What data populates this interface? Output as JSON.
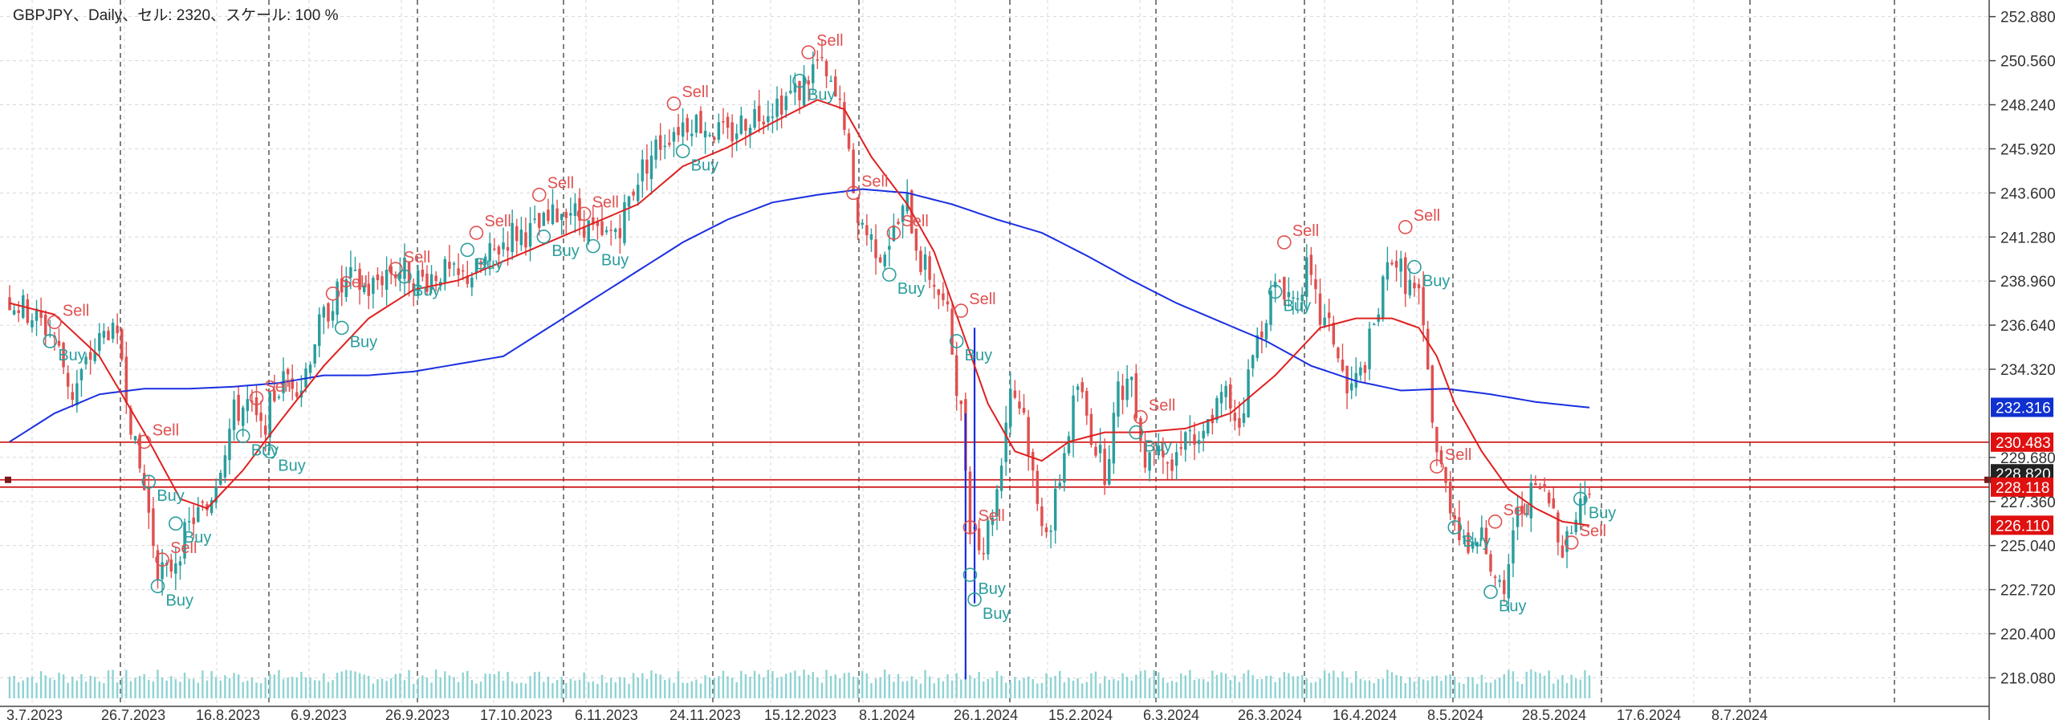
{
  "window": {
    "title": "GBPJPY、Daily、セル: 2320、スケール: 100 %"
  },
  "colors": {
    "bull": "#2a9d9d",
    "bear": "#e05050",
    "ma_fast": "#e02020",
    "ma_slow": "#1a2fe0",
    "hline": "#d02020",
    "grid": "#d8d8d8",
    "vline": "#555555",
    "tag_blue": "#1030d0",
    "tag_red": "#e01010",
    "tag_black": "#222222"
  },
  "chart_data": {
    "type": "candlestick",
    "symbol": "GBPJPY",
    "timeframe": "Daily",
    "ylim": [
      217.0,
      253.5
    ],
    "y_ticks": [
      "252.880",
      "250.560",
      "248.240",
      "245.920",
      "243.600",
      "241.280",
      "238.960",
      "236.640",
      "234.320",
      "229.680",
      "227.360",
      "225.040",
      "222.720",
      "220.400",
      "218.080"
    ],
    "x_tick_labels": [
      "3.7.2023",
      "26.7.2023",
      "16.8.2023",
      "6.9.2023",
      "26.9.2023",
      "17.10.2023",
      "6.11.2023",
      "24.11.2023",
      "15.12.2023",
      "8.1.2024",
      "26.1.2024",
      "15.2.2024",
      "6.3.2024",
      "26.3.2024",
      "16.4.2024",
      "8.5.2024",
      "28.5.2024",
      "17.6.2024",
      "8.7.2024"
    ],
    "price_tags": [
      {
        "value": "232.316",
        "color": "blue"
      },
      {
        "value": "230.483",
        "color": "red"
      },
      {
        "value": "228.820",
        "color": "black"
      },
      {
        "value": "228.118",
        "color": "red"
      },
      {
        "value": "226.110",
        "color": "red"
      }
    ],
    "horizontal_lines": [
      230.483,
      228.5,
      228.118
    ],
    "trend": [
      [
        0,
        238.0
      ],
      [
        6,
        237.0
      ],
      [
        10,
        236.0
      ],
      [
        14,
        233.0
      ],
      [
        18,
        235.0
      ],
      [
        22,
        236.5
      ],
      [
        25,
        235.0
      ],
      [
        28,
        230.0
      ],
      [
        30,
        228.0
      ],
      [
        33,
        224.0
      ],
      [
        35,
        223.5
      ],
      [
        38,
        225.0
      ],
      [
        41,
        226.5
      ],
      [
        44,
        227.0
      ],
      [
        47,
        229.5
      ],
      [
        50,
        232.0
      ],
      [
        53,
        232.5
      ],
      [
        56,
        231.0
      ],
      [
        59,
        233.0
      ],
      [
        62,
        234.0
      ],
      [
        65,
        233.5
      ],
      [
        68,
        236.0
      ],
      [
        72,
        238.0
      ],
      [
        76,
        239.0
      ],
      [
        80,
        238.5
      ],
      [
        84,
        239.5
      ],
      [
        88,
        239.5
      ],
      [
        92,
        239.0
      ],
      [
        96,
        239.5
      ],
      [
        100,
        239.0
      ],
      [
        104,
        239.5
      ],
      [
        108,
        240.5
      ],
      [
        112,
        241.5
      ],
      [
        116,
        241.5
      ],
      [
        120,
        242.0
      ],
      [
        124,
        243.0
      ],
      [
        128,
        242.0
      ],
      [
        132,
        241.0
      ],
      [
        136,
        242.0
      ],
      [
        140,
        244.5
      ],
      [
        144,
        246.0
      ],
      [
        148,
        247.0
      ],
      [
        152,
        247.5
      ],
      [
        156,
        247.0
      ],
      [
        160,
        246.5
      ],
      [
        164,
        247.5
      ],
      [
        168,
        248.0
      ],
      [
        172,
        248.5
      ],
      [
        176,
        249.0
      ],
      [
        180,
        250.5
      ],
      [
        183,
        249.0
      ],
      [
        186,
        247.5
      ],
      [
        188,
        243.0
      ],
      [
        191,
        241.5
      ],
      [
        194,
        240.5
      ],
      [
        197,
        241.5
      ],
      [
        200,
        243.0
      ],
      [
        203,
        240.0
      ],
      [
        206,
        239.0
      ],
      [
        209,
        237.0
      ],
      [
        212,
        232.0
      ],
      [
        214,
        226.5
      ],
      [
        217,
        225.0
      ],
      [
        220,
        228.0
      ],
      [
        223,
        233.5
      ],
      [
        226,
        232.0
      ],
      [
        229,
        227.0
      ],
      [
        232,
        226.0
      ],
      [
        235,
        230.0
      ],
      [
        238,
        233.5
      ],
      [
        241,
        231.0
      ],
      [
        244,
        229.0
      ],
      [
        247,
        233.0
      ],
      [
        250,
        234.0
      ],
      [
        253,
        229.5
      ],
      [
        256,
        231.0
      ],
      [
        259,
        229.0
      ],
      [
        262,
        231.5
      ],
      [
        265,
        230.0
      ],
      [
        268,
        232.0
      ],
      [
        271,
        233.0
      ],
      [
        274,
        231.5
      ],
      [
        277,
        235.0
      ],
      [
        280,
        237.5
      ],
      [
        283,
        239.0
      ],
      [
        286,
        238.0
      ],
      [
        289,
        239.5
      ],
      [
        292,
        237.0
      ],
      [
        295,
        236.0
      ],
      [
        298,
        233.0
      ],
      [
        301,
        234.0
      ],
      [
        304,
        236.5
      ],
      [
        306,
        238.5
      ],
      [
        308,
        240.5
      ],
      [
        311,
        239.0
      ],
      [
        314,
        238.0
      ],
      [
        316,
        234.0
      ],
      [
        318,
        230.0
      ],
      [
        320,
        228.0
      ],
      [
        323,
        226.0
      ],
      [
        326,
        224.5
      ],
      [
        328,
        226.5
      ],
      [
        331,
        223.0
      ],
      [
        333,
        222.0
      ],
      [
        335,
        226.0
      ],
      [
        338,
        227.5
      ],
      [
        341,
        228.0
      ],
      [
        344,
        227.0
      ],
      [
        346,
        225.0
      ],
      [
        349,
        226.5
      ],
      [
        352,
        228.5
      ]
    ],
    "ma_fast": [
      [
        0,
        237.8
      ],
      [
        10,
        237.2
      ],
      [
        20,
        235.0
      ],
      [
        30,
        231.0
      ],
      [
        38,
        227.5
      ],
      [
        44,
        227.0
      ],
      [
        52,
        229.0
      ],
      [
        60,
        231.5
      ],
      [
        70,
        234.5
      ],
      [
        80,
        237.0
      ],
      [
        90,
        238.5
      ],
      [
        100,
        239.0
      ],
      [
        110,
        240.0
      ],
      [
        120,
        241.0
      ],
      [
        130,
        242.0
      ],
      [
        140,
        243.0
      ],
      [
        150,
        245.0
      ],
      [
        160,
        246.0
      ],
      [
        170,
        247.3
      ],
      [
        180,
        248.5
      ],
      [
        186,
        248.0
      ],
      [
        192,
        245.5
      ],
      [
        200,
        243.0
      ],
      [
        206,
        240.5
      ],
      [
        212,
        236.5
      ],
      [
        218,
        232.5
      ],
      [
        224,
        230.0
      ],
      [
        230,
        229.5
      ],
      [
        236,
        230.5
      ],
      [
        244,
        231.0
      ],
      [
        252,
        231.0
      ],
      [
        262,
        231.2
      ],
      [
        272,
        232.0
      ],
      [
        282,
        234.0
      ],
      [
        292,
        236.5
      ],
      [
        300,
        237.0
      ],
      [
        308,
        237.0
      ],
      [
        314,
        236.5
      ],
      [
        318,
        235.0
      ],
      [
        322,
        232.5
      ],
      [
        328,
        230.0
      ],
      [
        334,
        228.0
      ],
      [
        340,
        227.0
      ],
      [
        346,
        226.3
      ],
      [
        352,
        226.1
      ]
    ],
    "ma_slow": [
      [
        0,
        230.5
      ],
      [
        10,
        232.0
      ],
      [
        20,
        233.0
      ],
      [
        30,
        233.3
      ],
      [
        40,
        233.3
      ],
      [
        50,
        233.4
      ],
      [
        60,
        233.6
      ],
      [
        70,
        234.0
      ],
      [
        80,
        234.0
      ],
      [
        90,
        234.2
      ],
      [
        100,
        234.6
      ],
      [
        110,
        235.0
      ],
      [
        120,
        236.5
      ],
      [
        130,
        238.0
      ],
      [
        140,
        239.5
      ],
      [
        150,
        241.0
      ],
      [
        160,
        242.2
      ],
      [
        170,
        243.1
      ],
      [
        180,
        243.5
      ],
      [
        190,
        243.8
      ],
      [
        200,
        243.6
      ],
      [
        210,
        243.0
      ],
      [
        220,
        242.2
      ],
      [
        230,
        241.5
      ],
      [
        240,
        240.3
      ],
      [
        250,
        239.0
      ],
      [
        260,
        237.8
      ],
      [
        270,
        236.8
      ],
      [
        280,
        235.8
      ],
      [
        290,
        234.5
      ],
      [
        300,
        233.7
      ],
      [
        310,
        233.2
      ],
      [
        320,
        233.3
      ],
      [
        330,
        233.0
      ],
      [
        340,
        232.6
      ],
      [
        352,
        232.3
      ]
    ],
    "signals": [
      {
        "type": "Sell",
        "i": 10,
        "v": 236.8
      },
      {
        "type": "Buy",
        "i": 9,
        "v": 235.8
      },
      {
        "type": "Sell",
        "i": 30,
        "v": 230.5
      },
      {
        "type": "Buy",
        "i": 31,
        "v": 228.4
      },
      {
        "type": "Sell",
        "i": 34,
        "v": 224.3
      },
      {
        "type": "Buy",
        "i": 33,
        "v": 222.9
      },
      {
        "type": "Buy",
        "i": 37,
        "v": 226.2
      },
      {
        "type": "Sell",
        "i": 55,
        "v": 232.8
      },
      {
        "type": "Buy",
        "i": 52,
        "v": 230.8
      },
      {
        "type": "Buy",
        "i": 58,
        "v": 230.0
      },
      {
        "type": "Sell",
        "i": 72,
        "v": 238.3
      },
      {
        "type": "Buy",
        "i": 74,
        "v": 236.5
      },
      {
        "type": "Sell",
        "i": 86,
        "v": 239.6
      },
      {
        "type": "Buy",
        "i": 88,
        "v": 239.2
      },
      {
        "type": "Sell",
        "i": 104,
        "v": 241.5
      },
      {
        "type": "Buy",
        "i": 102,
        "v": 240.6
      },
      {
        "type": "Sell",
        "i": 118,
        "v": 243.5
      },
      {
        "type": "Buy",
        "i": 119,
        "v": 241.3
      },
      {
        "type": "Sell",
        "i": 128,
        "v": 242.5
      },
      {
        "type": "Buy",
        "i": 130,
        "v": 240.8
      },
      {
        "type": "Sell",
        "i": 148,
        "v": 248.3
      },
      {
        "type": "Buy",
        "i": 150,
        "v": 245.8
      },
      {
        "type": "Sell",
        "i": 178,
        "v": 251.0
      },
      {
        "type": "Buy",
        "i": 176,
        "v": 249.5
      },
      {
        "type": "Sell",
        "i": 188,
        "v": 243.6
      },
      {
        "type": "Sell",
        "i": 197,
        "v": 241.5
      },
      {
        "type": "Buy",
        "i": 196,
        "v": 239.3
      },
      {
        "type": "Sell",
        "i": 212,
        "v": 237.4
      },
      {
        "type": "Buy",
        "i": 211,
        "v": 235.8
      },
      {
        "type": "Sell",
        "i": 214,
        "v": 226.0
      },
      {
        "type": "Buy",
        "i": 214,
        "v": 223.5
      },
      {
        "type": "Buy",
        "i": 215,
        "v": 222.2
      },
      {
        "type": "Sell",
        "i": 252,
        "v": 231.8
      },
      {
        "type": "Buy",
        "i": 251,
        "v": 231.0
      },
      {
        "type": "Sell",
        "i": 284,
        "v": 241.0
      },
      {
        "type": "Buy",
        "i": 282,
        "v": 238.4
      },
      {
        "type": "Sell",
        "i": 311,
        "v": 241.8
      },
      {
        "type": "Buy",
        "i": 313,
        "v": 239.7
      },
      {
        "type": "Sell",
        "i": 318,
        "v": 229.2
      },
      {
        "type": "Buy",
        "i": 322,
        "v": 226.0
      },
      {
        "type": "Sell",
        "i": 331,
        "v": 226.3
      },
      {
        "type": "Buy",
        "i": 330,
        "v": 222.6
      },
      {
        "type": "Sell",
        "i": 348,
        "v": 225.2
      },
      {
        "type": "Buy",
        "i": 350,
        "v": 227.5
      }
    ],
    "grid": true,
    "legend": "none"
  }
}
